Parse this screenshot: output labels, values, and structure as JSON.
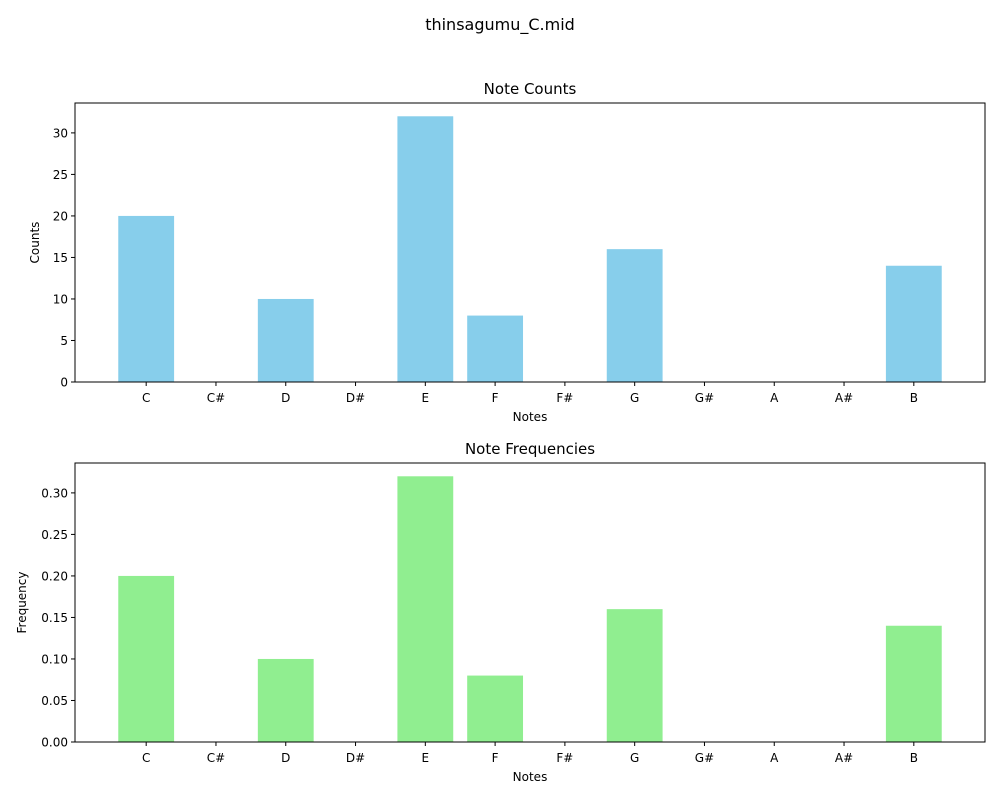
{
  "figure": {
    "suptitle": "thinsagumu_C.mid"
  },
  "chart_data": [
    {
      "type": "bar",
      "title": "Note Counts",
      "xlabel": "Notes",
      "ylabel": "Counts",
      "categories": [
        "C",
        "C#",
        "D",
        "D#",
        "E",
        "F",
        "F#",
        "G",
        "G#",
        "A",
        "A#",
        "B"
      ],
      "values": [
        20,
        0,
        10,
        0,
        32,
        8,
        0,
        16,
        0,
        0,
        0,
        14
      ],
      "ylim": [
        0,
        33.6
      ],
      "yticks": [
        0,
        5,
        10,
        15,
        20,
        25,
        30
      ],
      "ytick_labels": [
        "0",
        "5",
        "10",
        "15",
        "20",
        "25",
        "30"
      ],
      "color": "#87ceeb",
      "grid": false
    },
    {
      "type": "bar",
      "title": "Note Frequencies",
      "xlabel": "Notes",
      "ylabel": "Frequency",
      "categories": [
        "C",
        "C#",
        "D",
        "D#",
        "E",
        "F",
        "F#",
        "G",
        "G#",
        "A",
        "A#",
        "B"
      ],
      "values": [
        0.2,
        0,
        0.1,
        0,
        0.32,
        0.08,
        0,
        0.16,
        0,
        0,
        0,
        0.14
      ],
      "ylim": [
        0,
        0.336
      ],
      "yticks": [
        0,
        0.05,
        0.1,
        0.15,
        0.2,
        0.25,
        0.3
      ],
      "ytick_labels": [
        "0.00",
        "0.05",
        "0.10",
        "0.15",
        "0.20",
        "0.25",
        "0.30"
      ],
      "color": "#90ee90",
      "grid": false
    }
  ]
}
